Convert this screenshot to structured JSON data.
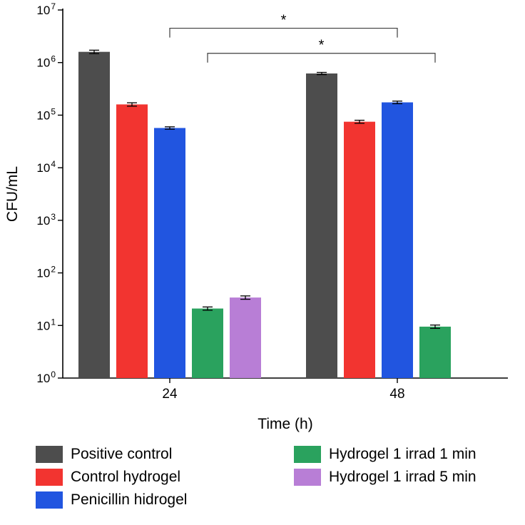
{
  "chart_data": {
    "type": "bar",
    "title": "",
    "ylabel": "CFU/mL",
    "xlabel": "Time (h)",
    "yscale": "log",
    "ylim": [
      1,
      10000000
    ],
    "y_tick_exponents": [
      0,
      1,
      2,
      3,
      4,
      5,
      6,
      7
    ],
    "categories": [
      "24",
      "48"
    ],
    "series": [
      {
        "name": "Positive control",
        "color": "#4d4d4d",
        "values": [
          1600000,
          620000
        ],
        "errors": [
          120000,
          30000
        ]
      },
      {
        "name": "Control hydrogel",
        "color": "#f23430",
        "values": [
          160000,
          75000
        ],
        "errors": [
          12000,
          5000
        ]
      },
      {
        "name": "Penicillin hidrogel",
        "color": "#2155e0",
        "values": [
          57000,
          175000
        ],
        "errors": [
          3000,
          10000
        ]
      },
      {
        "name": "Hydrogel 1 irrad 1 min",
        "color": "#2aa25e",
        "values": [
          21,
          9.5
        ],
        "errors": [
          1.5,
          0.7
        ]
      },
      {
        "name": "Hydrogel 1 irrad 5 min",
        "color": "#b87ed6",
        "values": [
          34,
          null
        ],
        "errors": [
          2.5,
          null
        ]
      }
    ],
    "annotations": [
      {
        "label": "*",
        "series1": 2,
        "cat1": 0,
        "series2": 2,
        "cat2": 1,
        "y": 4500000
      },
      {
        "label": "*",
        "series1": 3,
        "cat1": 0,
        "series2": 3,
        "cat2": 1,
        "y": 1500000
      }
    ],
    "legend": {
      "position": "bottom",
      "columns": [
        [
          0,
          1,
          2
        ],
        [
          3,
          4
        ]
      ]
    }
  }
}
